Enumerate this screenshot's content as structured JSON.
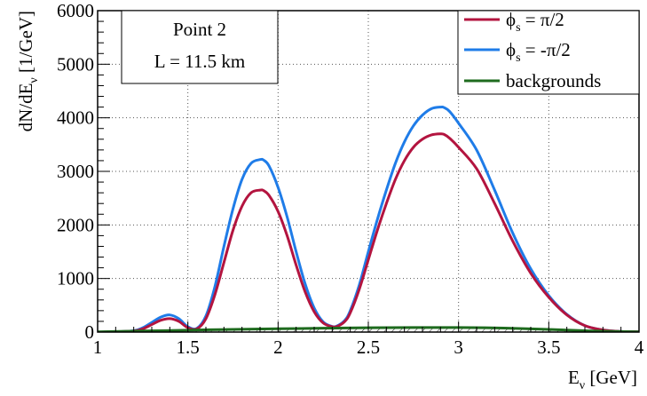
{
  "chart_data": {
    "type": "line",
    "xlabel": "E",
    "xlabel_sub": "ν",
    "xlabel_unit": " [GeV]",
    "ylabel": "dN/dE",
    "ylabel_sub": "ν",
    "ylabel_unit": " [1/GeV]",
    "xlim": [
      1,
      4
    ],
    "ylim": [
      0,
      6000
    ],
    "x_ticks": [
      1,
      1.5,
      2,
      2.5,
      3,
      3.5,
      4
    ],
    "x_tick_labels": [
      "1",
      "1.5",
      "2",
      "2.5",
      "3",
      "3.5",
      "4"
    ],
    "y_ticks": [
      0,
      1000,
      2000,
      3000,
      4000,
      5000,
      6000
    ],
    "y_tick_labels": [
      "0",
      "1000",
      "2000",
      "3000",
      "4000",
      "5000",
      "6000"
    ],
    "grid": true,
    "legend_placement": "top-right",
    "annotation": {
      "line1": "Point 2",
      "line2": "L = 11.5 km"
    },
    "series": [
      {
        "name": "ϕ",
        "name_sub": "s",
        "name_rest": " = π/2",
        "color": "#b3143f",
        "x": [
          1.0,
          1.1,
          1.2,
          1.25,
          1.3,
          1.35,
          1.4,
          1.45,
          1.5,
          1.55,
          1.6,
          1.65,
          1.7,
          1.75,
          1.8,
          1.85,
          1.9,
          1.92,
          1.95,
          2.0,
          2.05,
          2.1,
          2.15,
          2.2,
          2.25,
          2.3,
          2.33,
          2.37,
          2.4,
          2.45,
          2.5,
          2.55,
          2.6,
          2.65,
          2.7,
          2.75,
          2.8,
          2.85,
          2.9,
          2.92,
          2.95,
          3.0,
          3.1,
          3.2,
          3.3,
          3.4,
          3.5,
          3.6,
          3.7,
          3.8,
          3.9,
          4.0
        ],
        "values": [
          0,
          5,
          20,
          60,
          140,
          220,
          250,
          200,
          80,
          60,
          250,
          700,
          1300,
          1900,
          2350,
          2600,
          2650,
          2640,
          2550,
          2250,
          1800,
          1250,
          750,
          380,
          170,
          100,
          110,
          200,
          360,
          800,
          1350,
          1900,
          2400,
          2850,
          3200,
          3450,
          3600,
          3680,
          3700,
          3690,
          3620,
          3450,
          3050,
          2400,
          1700,
          1100,
          650,
          320,
          120,
          40,
          10,
          5
        ]
      },
      {
        "name": "ϕ",
        "name_sub": "s",
        "name_rest": " = -π/2",
        "color": "#1f7ce8",
        "x": [
          1.0,
          1.1,
          1.2,
          1.25,
          1.3,
          1.35,
          1.4,
          1.45,
          1.5,
          1.55,
          1.6,
          1.65,
          1.7,
          1.75,
          1.8,
          1.85,
          1.9,
          1.92,
          1.95,
          2.0,
          2.05,
          2.1,
          2.15,
          2.2,
          2.25,
          2.3,
          2.33,
          2.37,
          2.4,
          2.45,
          2.5,
          2.55,
          2.6,
          2.65,
          2.7,
          2.75,
          2.8,
          2.85,
          2.9,
          2.92,
          2.95,
          3.0,
          3.1,
          3.2,
          3.3,
          3.4,
          3.5,
          3.6,
          3.7,
          3.8,
          3.9,
          4.0
        ],
        "values": [
          0,
          5,
          25,
          80,
          180,
          280,
          320,
          250,
          100,
          70,
          300,
          850,
          1600,
          2300,
          2850,
          3150,
          3220,
          3210,
          3100,
          2700,
          2150,
          1500,
          900,
          450,
          190,
          105,
          120,
          220,
          400,
          880,
          1500,
          2100,
          2650,
          3150,
          3550,
          3850,
          4050,
          4170,
          4200,
          4190,
          4120,
          3900,
          3400,
          2650,
          1850,
          1180,
          680,
          330,
          120,
          40,
          10,
          5
        ]
      },
      {
        "name": "backgrounds",
        "color": "#1e6b1e",
        "x": [
          1.0,
          1.25,
          1.5,
          1.75,
          2.0,
          2.25,
          2.5,
          2.75,
          3.0,
          3.25,
          3.5,
          3.75,
          4.0
        ],
        "values": [
          5,
          20,
          35,
          50,
          62,
          72,
          80,
          85,
          85,
          75,
          50,
          20,
          5
        ]
      }
    ]
  }
}
